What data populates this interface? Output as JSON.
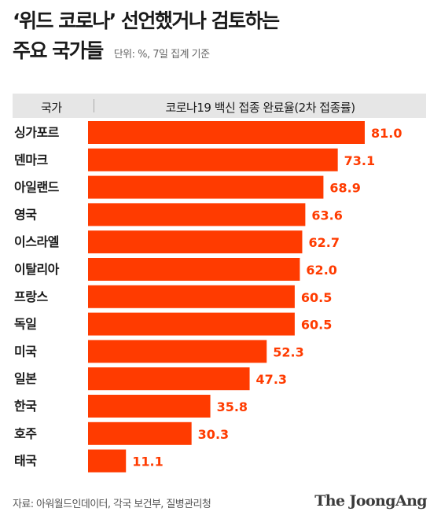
{
  "header": {
    "title_line1": "‘위드 코로나’ 선언했거나 검토하는",
    "title_line2": "주요 국가들",
    "subtitle": "단위: %, 7일 집계 기준"
  },
  "table_header": {
    "country": "국가",
    "metric": "코로나19 백신 접종 완료율(2차 접종률)"
  },
  "chart_data": {
    "type": "bar",
    "orientation": "horizontal",
    "title": "‘위드 코로나’ 선언했거나 검토하는 주요 국가들",
    "ylabel": "코로나19 백신 접종 완료율(2차 접종률)",
    "unit": "%",
    "categories": [
      "싱가포르",
      "덴마크",
      "아일랜드",
      "영국",
      "이스라엘",
      "이탈리아",
      "프랑스",
      "독일",
      "미국",
      "일본",
      "한국",
      "호주",
      "태국"
    ],
    "values": [
      81.0,
      73.1,
      68.9,
      63.6,
      62.7,
      62.0,
      60.5,
      60.5,
      52.3,
      47.3,
      35.8,
      30.3,
      11.1
    ],
    "value_labels": [
      "81.0",
      "73.1",
      "68.9",
      "63.6",
      "62.7",
      "62.0",
      "60.5",
      "60.5",
      "52.3",
      "47.3",
      "35.8",
      "30.3",
      "11.1"
    ],
    "xlim": [
      0,
      100
    ],
    "bar_color": "#ff3b00",
    "label_color": "#ff3b00"
  },
  "footer": {
    "source": "자료: 아워월드인데이터, 각국 보건부, 질병관리청",
    "logo": "The JoongAng"
  }
}
